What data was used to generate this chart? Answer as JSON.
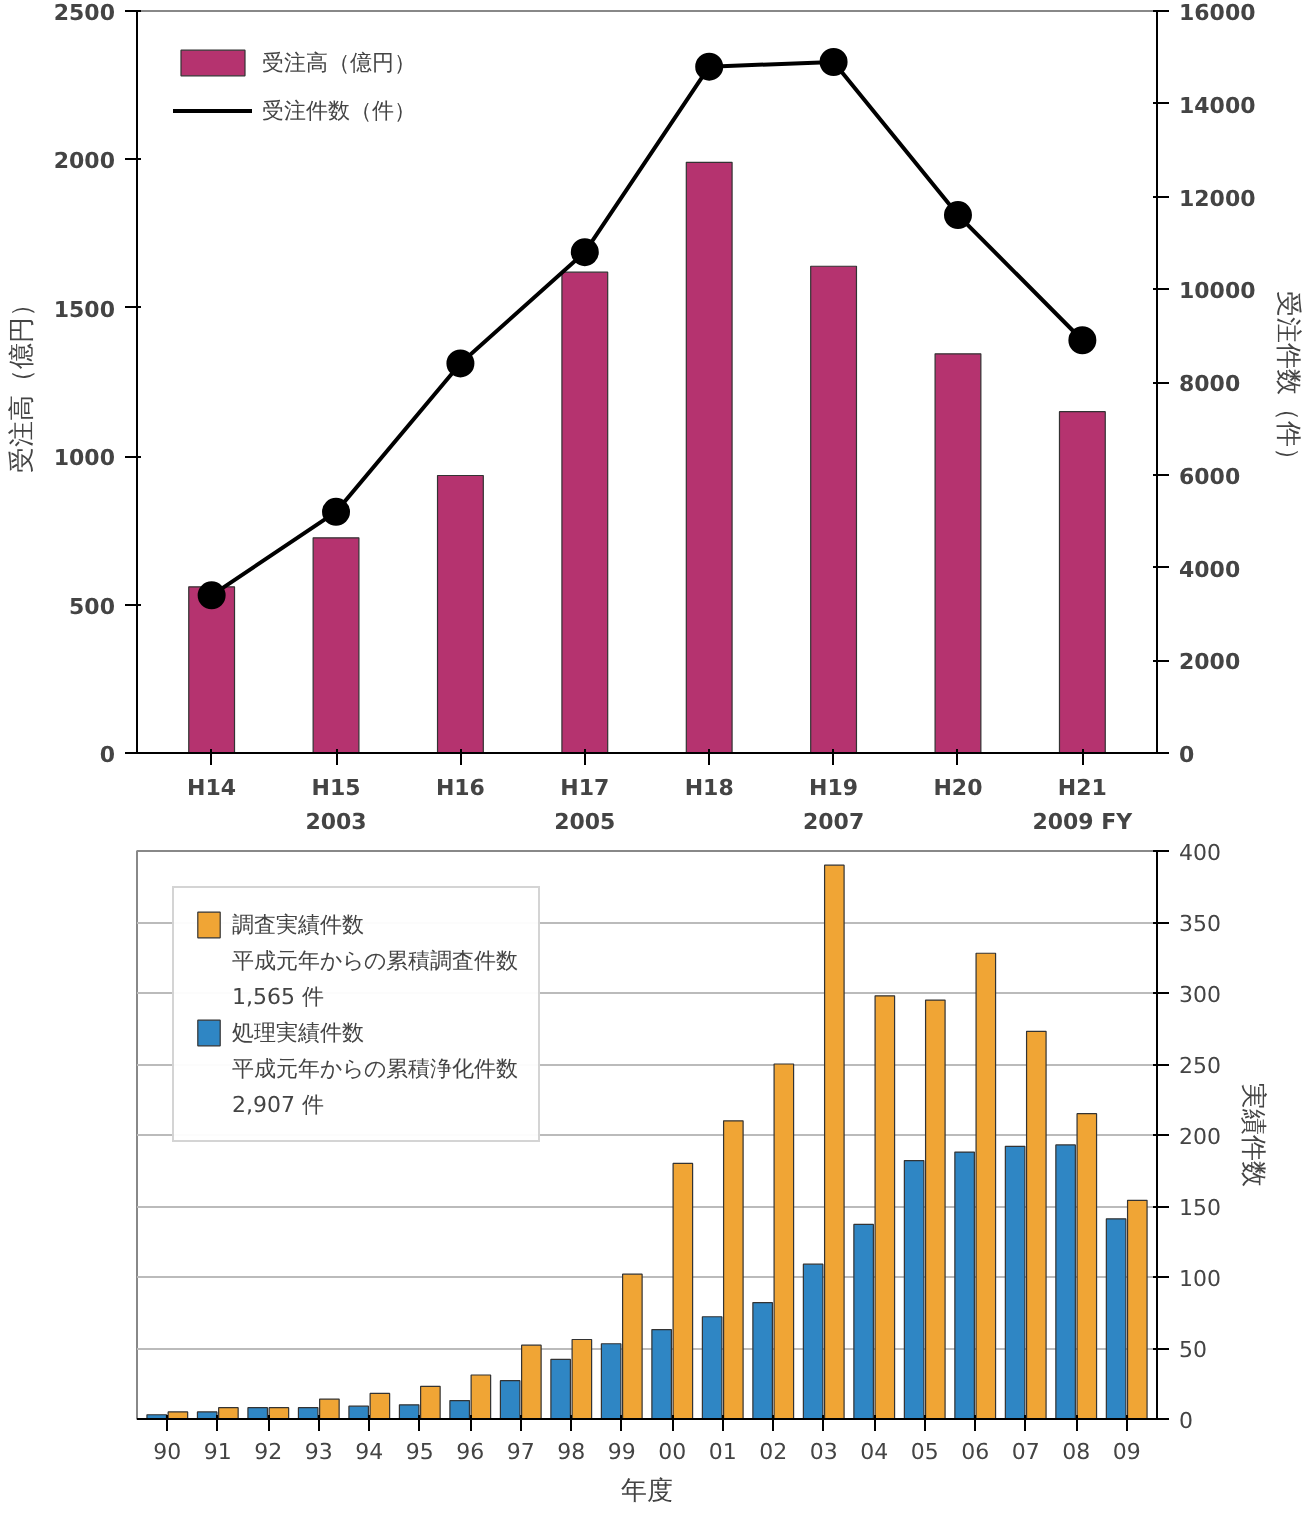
{
  "chart_data": [
    {
      "type": "bar",
      "categories": [
        "H14",
        "H15\n2003",
        "H16",
        "H17\n2005",
        "H18",
        "H19\n2007",
        "H20",
        "H21\n2009 FY"
      ],
      "ylabel": "受注高（億円）",
      "y2label": "受注件数（件）",
      "ylim": [
        0,
        2500
      ],
      "yticks": [
        0,
        500,
        1000,
        1500,
        2000,
        2500
      ],
      "y2lim": [
        0,
        16000
      ],
      "y2ticks": [
        0,
        2000,
        4000,
        6000,
        8000,
        10000,
        12000,
        14000,
        16000
      ],
      "series": [
        {
          "name": "受注高（億円）",
          "type": "bar",
          "color": "#b5336f",
          "values": [
            560,
            725,
            935,
            1620,
            1990,
            1640,
            1345,
            1150
          ]
        },
        {
          "name": "受注件数（件）",
          "type": "line",
          "axis": "y2",
          "color": "#000000",
          "values": [
            3400,
            5200,
            8400,
            10800,
            14800,
            14900,
            11600,
            8900
          ]
        }
      ],
      "marker": "circle",
      "legend": "top left",
      "grid": false
    },
    {
      "type": "bar",
      "categories": [
        "90",
        "91",
        "92",
        "93",
        "94",
        "95",
        "96",
        "97",
        "98",
        "99",
        "00",
        "01",
        "02",
        "03",
        "04",
        "05",
        "06",
        "07",
        "08",
        "09"
      ],
      "xlabel": "年度",
      "y2label": "実績件数",
      "y2lim": [
        0,
        400
      ],
      "y2ticks": [
        0,
        50,
        100,
        150,
        200,
        250,
        300,
        350,
        400
      ],
      "series": [
        {
          "name": "調査実績件数",
          "axis": "y2",
          "color": "#f0a535",
          "values": [
            5,
            8,
            8,
            14,
            18,
            23,
            31,
            52,
            56,
            102,
            180,
            210,
            250,
            390,
            298,
            295,
            328,
            273,
            215,
            154
          ]
        },
        {
          "name": "処理実績件数",
          "axis": "y2",
          "color": "#2f86c4",
          "values": [
            3,
            5,
            8,
            8,
            9,
            10,
            13,
            27,
            42,
            53,
            63,
            72,
            82,
            109,
            137,
            182,
            188,
            192,
            193,
            141
          ]
        }
      ],
      "legend": "top left",
      "grid": "y",
      "annotations": [
        "平成元年からの累積調査件数",
        "1,565 件",
        "平成元年からの累積浄化件数",
        "2,907 件"
      ]
    }
  ]
}
